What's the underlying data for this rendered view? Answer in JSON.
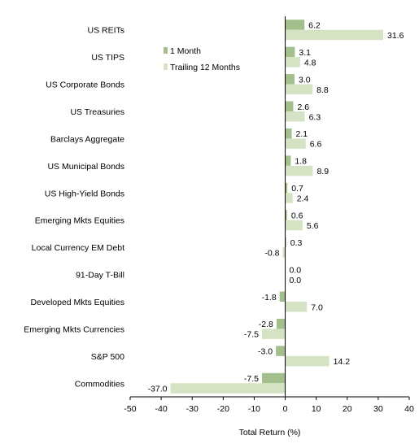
{
  "chart_data": {
    "type": "bar",
    "orientation": "horizontal",
    "categories": [
      "US REITs",
      "US TIPS",
      "US Corporate Bonds",
      "US Treasuries",
      "Barclays Aggregate",
      "US Municipal Bonds",
      "US High-Yield Bonds",
      "Emerging Mkts Equities",
      "Local Currency EM Debt",
      "91-Day T-Bill",
      "Developed Mkts Equities",
      "Emerging Mkts Currencies",
      "S&P 500",
      "Commodities"
    ],
    "series": [
      {
        "name": "1 Month",
        "color": "#a3bf8c",
        "values": [
          6.2,
          3.1,
          3.0,
          2.6,
          2.1,
          1.8,
          0.7,
          0.6,
          0.3,
          0.0,
          -1.8,
          -2.8,
          -3.0,
          -7.5
        ],
        "labels": [
          "6.2",
          "3.1",
          "3.0",
          "2.6",
          "2.1",
          "1.8",
          "0.7",
          "0.6",
          "0.3",
          "0.0",
          "-1.8",
          "-2.8",
          "-3.0",
          "-7.5"
        ]
      },
      {
        "name": "Trailing 12 Months",
        "color": "#d5e3c4",
        "values": [
          31.6,
          4.8,
          8.8,
          6.3,
          6.6,
          8.9,
          2.4,
          5.6,
          -0.8,
          0.0,
          7.0,
          -7.5,
          14.2,
          -37.0
        ],
        "labels": [
          "31.6",
          "4.8",
          "8.8",
          "6.3",
          "6.6",
          "8.9",
          "2.4",
          "5.6",
          "-0.8",
          "0.0",
          "7.0",
          "-7.5",
          "14.2",
          "-37.0"
        ]
      }
    ],
    "xlabel": "Total Return (%)",
    "xlim": [
      -50,
      40
    ],
    "xticks": [
      -50,
      -40,
      -30,
      -20,
      -10,
      0,
      10,
      20,
      30,
      40
    ],
    "xtick_labels": [
      "-50",
      "-40",
      "-30",
      "-20",
      "-10",
      "0",
      "10",
      "20",
      "30",
      "40"
    ],
    "grid": false,
    "legend_position": "top-left of plot area"
  }
}
